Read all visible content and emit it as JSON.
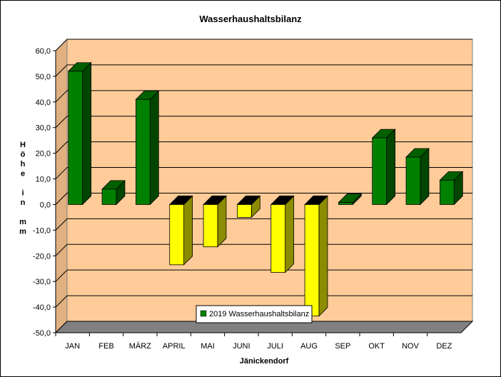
{
  "chart_data": {
    "type": "bar",
    "title": "Wasserhaushaltsbilanz",
    "xlabel": "Jänickendorf",
    "ylabel": "Höhe in mm",
    "categories": [
      "JAN",
      "FEB",
      "MÄRZ",
      "APRIL",
      "MAI",
      "JUNI",
      "JULI",
      "AUG",
      "SEP",
      "OKT",
      "NOV",
      "DEZ"
    ],
    "series": [
      {
        "name": "2019 Wasserhaushaltsbilanz",
        "values": [
          52.0,
          6.0,
          41.0,
          -23.5,
          -16.5,
          -5.0,
          -26.5,
          -43.5,
          0.8,
          26.0,
          18.5,
          9.5
        ]
      }
    ],
    "ylim": [
      -50,
      60
    ],
    "yticks": [
      "60,0",
      "50,0",
      "40,0",
      "30,0",
      "20,0",
      "10,0",
      "0,0",
      "-10,0",
      "-20,0",
      "-30,0",
      "-40,0",
      "-50,0"
    ],
    "ytick_values": [
      60,
      50,
      40,
      30,
      20,
      10,
      0,
      -10,
      -20,
      -30,
      -40,
      -50
    ],
    "ylabel_lines": [
      "H",
      "ö",
      "h",
      "e",
      "",
      "i",
      "n",
      "",
      "m",
      "m"
    ],
    "grid": true,
    "legend_position": "bottom-center",
    "colors": {
      "plot_background": "#ffcc99",
      "positive": "#008000",
      "negative": "#ffff00",
      "floor": "#808080"
    }
  }
}
